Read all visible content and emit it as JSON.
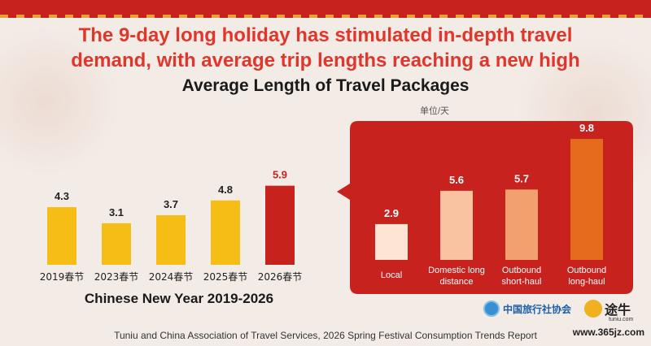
{
  "headline": "The 9-day long holiday has stimulated in-depth travel demand, with average trip lengths reaching a new high",
  "unit_label": "单位/天",
  "source": "Tuniu and China Association of Travel Services, 2026 Spring Festival Consumption Trends Report",
  "logos": {
    "association": "中国旅行社协会",
    "tuniu": "途牛",
    "tuniu_url": "tuniu.com"
  },
  "watermark": "www.365jz.com",
  "colors": {
    "accent_red": "#c8221f",
    "headline_red": "#e0362c",
    "bar_yellow": "#f6bd16",
    "bar_highlight": "#c8221f",
    "callout_bg": "#c8221f",
    "local": "#fde4d4",
    "domestic": "#f9c3a2",
    "outbound_short": "#f2a06d",
    "outbound_long": "#e46c1c"
  },
  "chart_data": [
    {
      "type": "bar",
      "title": "Chinese New Year 2019-2026",
      "categories": [
        "2019春节",
        "2023春节",
        "2024春节",
        "2025春节",
        "2026春节"
      ],
      "values": [
        4.3,
        3.1,
        3.7,
        4.8,
        5.9
      ],
      "highlight_index": 4,
      "ylim": [
        0,
        10
      ]
    },
    {
      "type": "bar",
      "title": "Average Length of Travel Packages",
      "unit": "单位/天",
      "categories": [
        "Local",
        "Domestic long distance",
        "Outbound short-haul",
        "Outbound long-haul"
      ],
      "category_lines": [
        [
          "Local"
        ],
        [
          "Domestic long",
          "distance"
        ],
        [
          "Outbound",
          "short-haul"
        ],
        [
          "Outbound",
          "long-haul"
        ]
      ],
      "values": [
        2.9,
        5.6,
        5.7,
        9.8
      ],
      "ylim": [
        0,
        10
      ]
    }
  ]
}
